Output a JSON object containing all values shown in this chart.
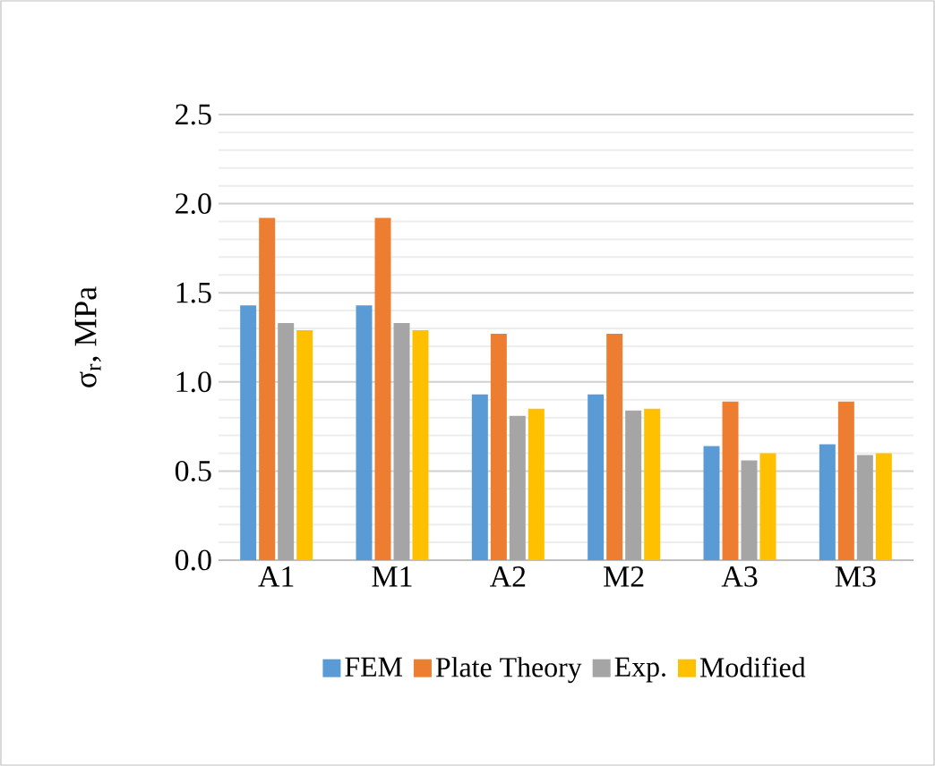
{
  "chart_data": {
    "type": "bar",
    "ylabel": "σ$_{r}$, MPa",
    "categories": [
      "A1",
      "M1",
      "A2",
      "M2",
      "A3",
      "M3"
    ],
    "series": [
      {
        "name": "FEM",
        "color": "#5b9bd5",
        "values": [
          1.43,
          1.43,
          0.93,
          0.93,
          0.64,
          0.65
        ]
      },
      {
        "name": "Plate Theory",
        "color": "#ed7d31",
        "values": [
          1.92,
          1.92,
          1.27,
          1.27,
          0.89,
          0.89
        ]
      },
      {
        "name": "Exp.",
        "color": "#a5a5a5",
        "values": [
          1.33,
          1.33,
          0.81,
          0.84,
          0.56,
          0.59
        ]
      },
      {
        "name": "Modified",
        "color": "#ffc000",
        "values": [
          1.29,
          1.29,
          0.85,
          0.85,
          0.6,
          0.6
        ]
      }
    ],
    "ylim": [
      0,
      2.5
    ],
    "yticks": [
      {
        "value": 0,
        "label": "0.0"
      },
      {
        "value": 0.5,
        "label": "0.5"
      },
      {
        "value": 1,
        "label": "1.0"
      },
      {
        "value": 1.5,
        "label": "1.5"
      },
      {
        "value": 2,
        "label": "2.0"
      },
      {
        "value": 2.5,
        "label": "2.5"
      }
    ],
    "grid": "y",
    "legend": "bottom"
  }
}
